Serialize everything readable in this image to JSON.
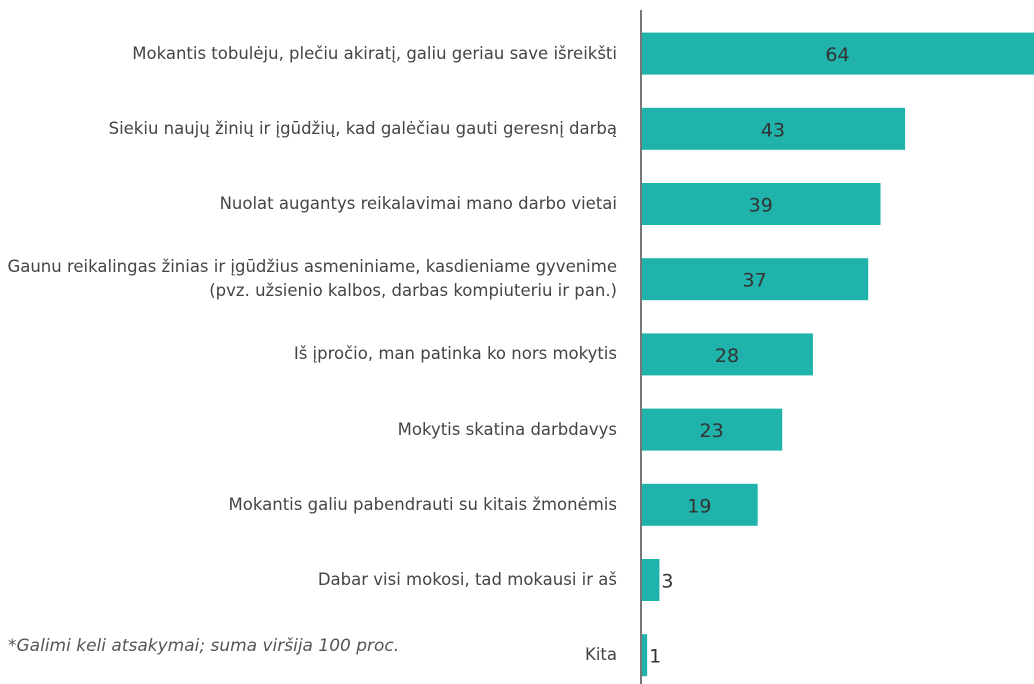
{
  "chart_data": {
    "type": "bar",
    "orientation": "horizontal",
    "categories": [
      "Mokantis tobulėju, plečiu akiratį, galiu geriau save išreikšti",
      "Siekiu naujų žinių ir įgūdžių, kad galėčiau gauti geresnį darbą",
      "Nuolat augantys reikalavimai mano darbo vietai",
      "Gaunu reikalingas žinias ir įgūdžius asmeniniame, kasdieniame gyvenime (pvz. užsienio kalbos, darbas kompiuteriu ir pan.)",
      "Iš įpročio, man patinka ko nors mokytis",
      "Mokytis skatina darbdavys",
      "Mokantis galiu pabendrauti su kitais žmonėmis",
      "Dabar visi mokosi, tad mokausi ir aš",
      "Kita"
    ],
    "values": [
      64,
      43,
      39,
      37,
      28,
      23,
      19,
      3,
      1
    ],
    "color": "#1fb3ac",
    "xlim": [
      0,
      64
    ],
    "annotation": "*Galimi keli atsakymai; suma viršija 100 proc."
  }
}
